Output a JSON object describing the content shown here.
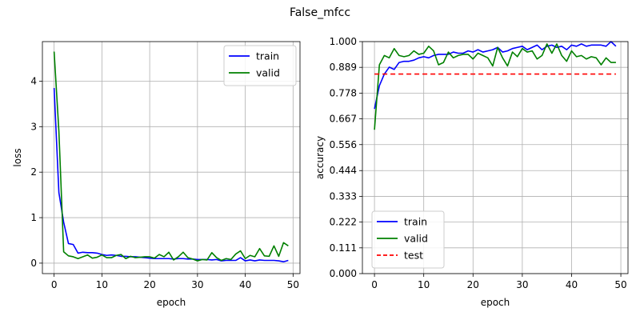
{
  "figure": {
    "title": "False_mfcc"
  },
  "chart_data": [
    {
      "type": "line",
      "xlabel": "epoch",
      "ylabel": "loss",
      "xlim": [
        -2.45,
        51.45
      ],
      "ylim": [
        -0.23,
        4.87
      ],
      "xticks": [
        0,
        10,
        20,
        30,
        40,
        50
      ],
      "yticks": [
        0,
        1,
        2,
        3,
        4
      ],
      "ytick_labels": [
        "0",
        "1",
        "2",
        "3",
        "4"
      ],
      "grid": true,
      "legend_position": "top-right",
      "x": [
        0,
        1,
        2,
        3,
        4,
        5,
        6,
        7,
        8,
        9,
        10,
        11,
        12,
        13,
        14,
        15,
        16,
        17,
        18,
        19,
        20,
        21,
        22,
        23,
        24,
        25,
        26,
        27,
        28,
        29,
        30,
        31,
        32,
        33,
        34,
        35,
        36,
        37,
        38,
        39,
        40,
        41,
        42,
        43,
        44,
        45,
        46,
        47,
        48,
        49
      ],
      "series": [
        {
          "name": "train",
          "color": "#0000ff",
          "dash": "",
          "values": [
            3.85,
            1.55,
            0.9,
            0.43,
            0.41,
            0.22,
            0.24,
            0.23,
            0.23,
            0.22,
            0.19,
            0.17,
            0.18,
            0.17,
            0.15,
            0.15,
            0.14,
            0.14,
            0.13,
            0.12,
            0.11,
            0.1,
            0.1,
            0.1,
            0.1,
            0.09,
            0.1,
            0.1,
            0.09,
            0.09,
            0.08,
            0.08,
            0.08,
            0.07,
            0.08,
            0.05,
            0.06,
            0.06,
            0.06,
            0.12,
            0.05,
            0.07,
            0.05,
            0.07,
            0.06,
            0.06,
            0.06,
            0.05,
            0.03,
            0.06
          ]
        },
        {
          "name": "valid",
          "color": "#008000",
          "dash": "",
          "values": [
            4.65,
            2.9,
            0.25,
            0.16,
            0.14,
            0.1,
            0.14,
            0.18,
            0.11,
            0.13,
            0.18,
            0.12,
            0.12,
            0.17,
            0.19,
            0.1,
            0.15,
            0.12,
            0.13,
            0.14,
            0.14,
            0.11,
            0.19,
            0.14,
            0.24,
            0.07,
            0.14,
            0.24,
            0.12,
            0.09,
            0.05,
            0.08,
            0.07,
            0.23,
            0.12,
            0.06,
            0.1,
            0.08,
            0.2,
            0.27,
            0.1,
            0.17,
            0.14,
            0.32,
            0.16,
            0.15,
            0.38,
            0.15,
            0.45,
            0.38
          ]
        }
      ]
    },
    {
      "type": "line",
      "xlabel": "epoch",
      "ylabel": "accuracy",
      "xlim": [
        -2.45,
        51.45
      ],
      "ylim": [
        0,
        1
      ],
      "xticks": [
        0,
        10,
        20,
        30,
        40,
        50
      ],
      "yticks": [
        0,
        0.111,
        0.222,
        0.333,
        0.444,
        0.556,
        0.667,
        0.778,
        0.889,
        1.0
      ],
      "ytick_labels": [
        "0.000",
        "0.111",
        "0.222",
        "0.333",
        "0.444",
        "0.556",
        "0.667",
        "0.778",
        "0.889",
        "1.000"
      ],
      "grid": true,
      "legend_position": "bottom-left",
      "x": [
        0,
        1,
        2,
        3,
        4,
        5,
        6,
        7,
        8,
        9,
        10,
        11,
        12,
        13,
        14,
        15,
        16,
        17,
        18,
        19,
        20,
        21,
        22,
        23,
        24,
        25,
        26,
        27,
        28,
        29,
        30,
        31,
        32,
        33,
        34,
        35,
        36,
        37,
        38,
        39,
        40,
        41,
        42,
        43,
        44,
        45,
        46,
        47,
        48,
        49
      ],
      "series": [
        {
          "name": "train",
          "color": "#0000ff",
          "dash": "",
          "values": [
            0.71,
            0.81,
            0.86,
            0.89,
            0.88,
            0.91,
            0.915,
            0.915,
            0.92,
            0.93,
            0.935,
            0.93,
            0.94,
            0.945,
            0.945,
            0.945,
            0.955,
            0.95,
            0.95,
            0.96,
            0.955,
            0.965,
            0.955,
            0.96,
            0.965,
            0.975,
            0.955,
            0.96,
            0.97,
            0.975,
            0.98,
            0.965,
            0.975,
            0.985,
            0.965,
            0.98,
            0.985,
            0.975,
            0.98,
            0.965,
            0.985,
            0.98,
            0.99,
            0.98,
            0.985,
            0.985,
            0.985,
            0.98,
            1.0,
            0.98
          ]
        },
        {
          "name": "valid",
          "color": "#008000",
          "dash": "",
          "values": [
            0.62,
            0.9,
            0.94,
            0.93,
            0.97,
            0.94,
            0.935,
            0.94,
            0.96,
            0.945,
            0.95,
            0.98,
            0.96,
            0.9,
            0.91,
            0.955,
            0.93,
            0.94,
            0.945,
            0.945,
            0.925,
            0.95,
            0.94,
            0.93,
            0.895,
            0.975,
            0.93,
            0.895,
            0.955,
            0.935,
            0.97,
            0.955,
            0.96,
            0.925,
            0.94,
            0.99,
            0.95,
            0.99,
            0.94,
            0.915,
            0.96,
            0.935,
            0.94,
            0.925,
            0.935,
            0.93,
            0.9,
            0.93,
            0.91,
            0.91
          ]
        },
        {
          "name": "test",
          "color": "#ff0000",
          "dash": "6,4",
          "values": [
            0.86,
            0.86,
            0.86,
            0.86,
            0.86,
            0.86,
            0.86,
            0.86,
            0.86,
            0.86,
            0.86,
            0.86,
            0.86,
            0.86,
            0.86,
            0.86,
            0.86,
            0.86,
            0.86,
            0.86,
            0.86,
            0.86,
            0.86,
            0.86,
            0.86,
            0.86,
            0.86,
            0.86,
            0.86,
            0.86,
            0.86,
            0.86,
            0.86,
            0.86,
            0.86,
            0.86,
            0.86,
            0.86,
            0.86,
            0.86,
            0.86,
            0.86,
            0.86,
            0.86,
            0.86,
            0.86,
            0.86,
            0.86,
            0.86,
            0.86
          ]
        }
      ]
    }
  ]
}
